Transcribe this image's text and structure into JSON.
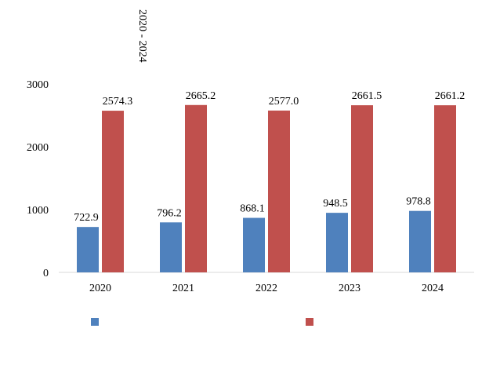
{
  "chart_data": {
    "type": "bar",
    "title": "2020 - 2024",
    "categories": [
      "2020",
      "2021",
      "2022",
      "2023",
      "2024"
    ],
    "series": [
      {
        "color": "#4f81bd",
        "values": [
          722.9,
          796.2,
          868.1,
          948.5,
          978.8
        ]
      },
      {
        "color": "#c0504d",
        "values": [
          2574.3,
          2665.2,
          2577.0,
          2661.5,
          2661.2
        ]
      }
    ],
    "ylim": [
      0,
      3000
    ],
    "yticks": [
      0,
      1000,
      2000,
      3000
    ],
    "grid": false,
    "legend": "bottom"
  }
}
